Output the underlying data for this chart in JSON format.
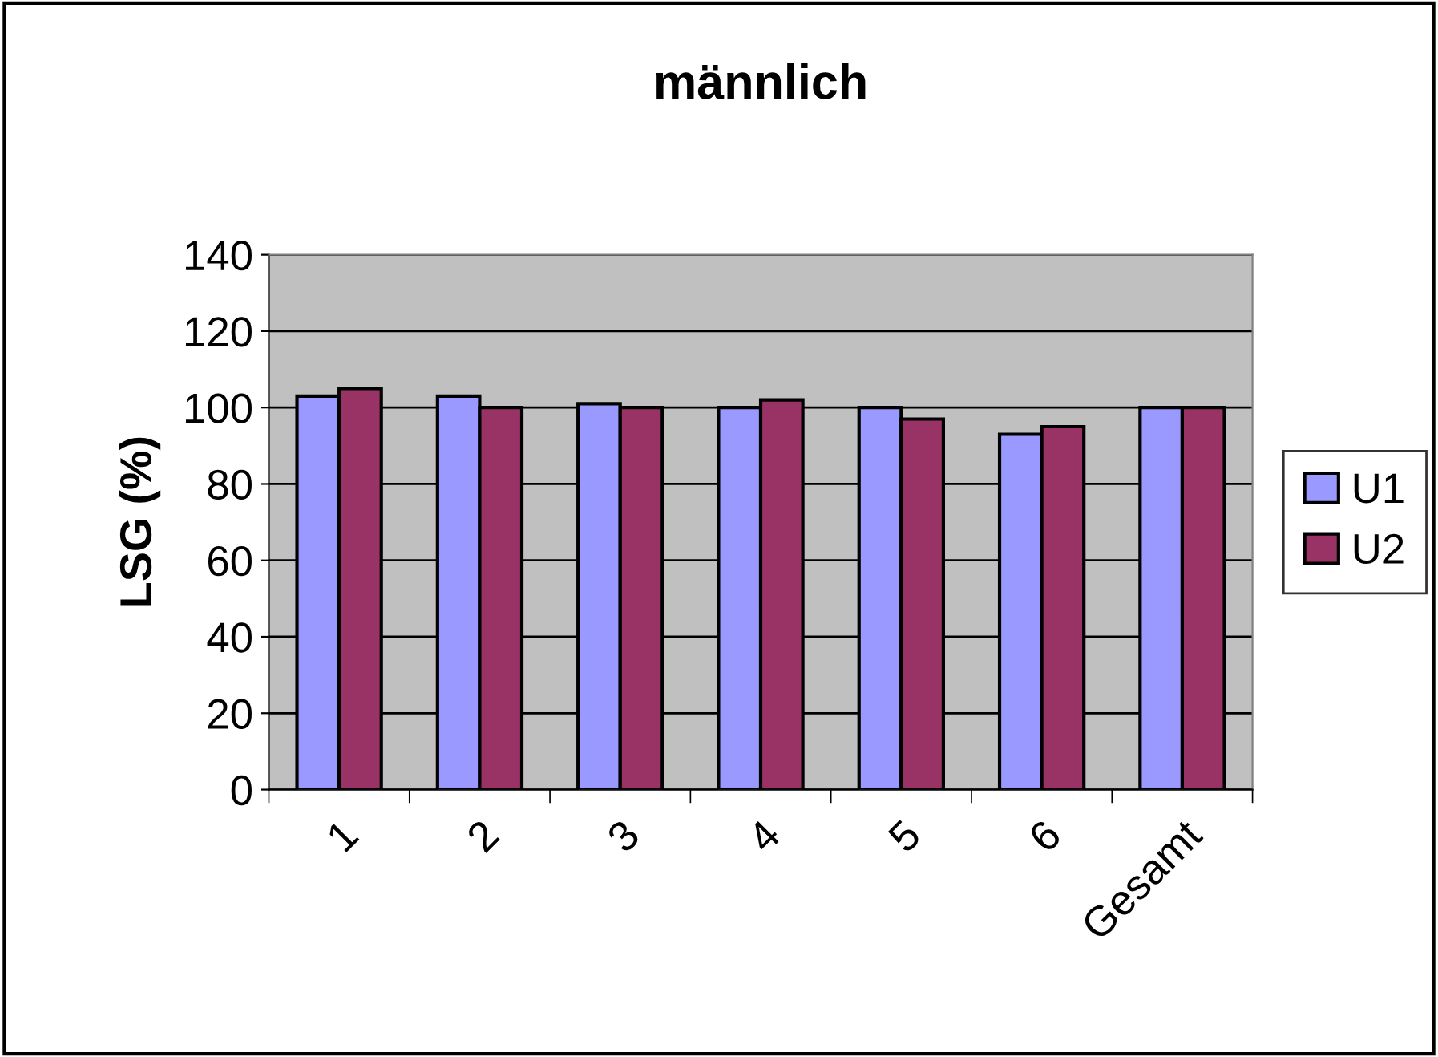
{
  "chart_data": {
    "type": "bar",
    "title": "männlich",
    "ylabel": "LSG (%)",
    "categories": [
      "1",
      "2",
      "3",
      "4",
      "5",
      "6",
      "Gesamt"
    ],
    "series": [
      {
        "name": "U1",
        "color": "#9999ff",
        "values": [
          103,
          103,
          101,
          100,
          100,
          93,
          100
        ]
      },
      {
        "name": "U2",
        "color": "#993366",
        "values": [
          105,
          100,
          100,
          102,
          97,
          95,
          100
        ]
      }
    ],
    "ylim": [
      0,
      140
    ],
    "yticks": [
      0,
      20,
      40,
      60,
      80,
      100,
      120,
      140
    ],
    "grid": "y",
    "legend": "right"
  }
}
